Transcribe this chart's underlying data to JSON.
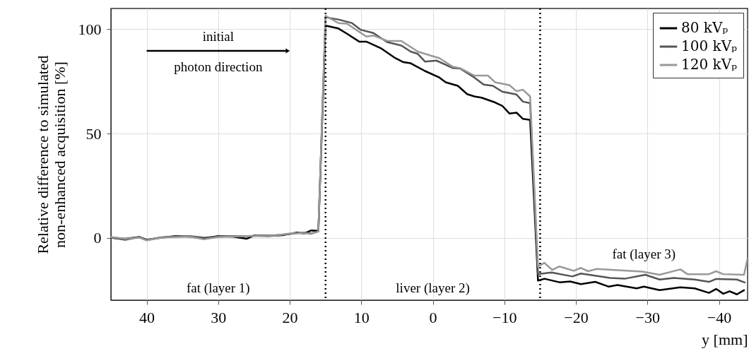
{
  "chart_data": {
    "type": "line",
    "xlabel": "y [mm]",
    "ylabel": "Relative difference to simulated non-enhanced acquisition [%]",
    "xlim": [
      45,
      -44
    ],
    "xticks": [
      40,
      30,
      20,
      10,
      0,
      -10,
      -20,
      -30,
      -40
    ],
    "ylim": [
      -30,
      110
    ],
    "yticks": [
      0,
      50,
      100
    ],
    "grid": true,
    "legend": "top right",
    "line_style": "solid",
    "series": [
      {
        "name": "80 kVₚ",
        "color": "#000000",
        "x": [
          45,
          43,
          41,
          40,
          38,
          36,
          34,
          32,
          30,
          28,
          26,
          25,
          23,
          21,
          19,
          18,
          17,
          16,
          15,
          13.2,
          12,
          10.3,
          9.3,
          7.3,
          5.4,
          4.1,
          3.1,
          1.1,
          -0.9,
          -1.8,
          -3.5,
          -4.8,
          -5.8,
          -6.8,
          -8.7,
          -9.7,
          -10.7,
          -11.7,
          -12.6,
          -13.6,
          -14.7,
          -15.6,
          -17.7,
          -19.2,
          -20.7,
          -22.7,
          -24.6,
          -25.8,
          -28.5,
          -29.5,
          -31.7,
          -34.6,
          -36.6,
          -38.6,
          -39.6,
          -40.6,
          -41.5,
          -42.5,
          -43.5
        ],
        "values": [
          0,
          -0.5,
          0.3,
          -1,
          0,
          0.8,
          0.5,
          -0.3,
          0.8,
          0.5,
          -0.5,
          1,
          0.8,
          1.2,
          2.5,
          2,
          3.5,
          3.3,
          101.8,
          100.4,
          97.9,
          94.1,
          94.1,
          91,
          86.5,
          84.2,
          83.7,
          80,
          76.9,
          74.6,
          72.9,
          68.9,
          67.8,
          67.2,
          64.9,
          63.3,
          59.6,
          60,
          57,
          56.5,
          -20.6,
          -19.7,
          -21.4,
          -21,
          -22.3,
          -21.2,
          -23.5,
          -22.7,
          -24.3,
          -23.5,
          -25.2,
          -23.8,
          -24.3,
          -26.5,
          -24.6,
          -26.9,
          -25.7,
          -27.2,
          -25.2
        ]
      },
      {
        "name": "100 kVₚ",
        "color": "#555555",
        "x": [
          45,
          43,
          41,
          40,
          38,
          36,
          34,
          32,
          30,
          28,
          26,
          24,
          22,
          20,
          18,
          17,
          16,
          15,
          13.2,
          11.3,
          10.1,
          8.3,
          6.4,
          4.4,
          3.1,
          2.1,
          1.1,
          -0.5,
          -2.8,
          -3.8,
          -5.8,
          -7.1,
          -8.4,
          -9.7,
          -11.7,
          -12.6,
          -13.6,
          -14.7,
          -16.6,
          -19.5,
          -20.7,
          -24.8,
          -26.8,
          -29.7,
          -31.7,
          -33.7,
          -36.6,
          -38.6,
          -39.6,
          -42.5,
          -43.6
        ],
        "values": [
          0,
          -1,
          0.3,
          -1.2,
          0.2,
          0.5,
          0.8,
          0,
          0.5,
          0.8,
          0.8,
          1,
          1.2,
          1.8,
          2.5,
          2,
          3,
          105.8,
          104.7,
          103,
          99.8,
          98.2,
          93.9,
          92.2,
          89.3,
          88.2,
          84.5,
          85,
          81.4,
          81.2,
          76.9,
          73.5,
          72.9,
          70.1,
          68.7,
          65.3,
          64.6,
          -17.5,
          -16.7,
          -18.6,
          -17.2,
          -19.3,
          -19.7,
          -17.8,
          -20.1,
          -19.3,
          -20.1,
          -21.2,
          -19.8,
          -20.1,
          -21.5
        ]
      },
      {
        "name": "120 kVₚ",
        "color": "#999999",
        "x": [
          45,
          43,
          41,
          40,
          38,
          36,
          34,
          32,
          30,
          28,
          26,
          24,
          22,
          20,
          18,
          17,
          16,
          15,
          13.2,
          12,
          9.3,
          8.3,
          6.4,
          4.4,
          2.1,
          0.2,
          -0.9,
          -2.8,
          -3.8,
          -5.8,
          -7.7,
          -8.7,
          -10.7,
          -11.7,
          -12.6,
          -13.6,
          -14.7,
          -15.6,
          -16.7,
          -17.7,
          -19.7,
          -20.7,
          -21.7,
          -22.9,
          -25.4,
          -29.3,
          -31.7,
          -34.6,
          -35.6,
          -38.6,
          -39.6,
          -40.6,
          -43.5,
          -44
        ],
        "values": [
          0.3,
          -0.5,
          0,
          -1.3,
          0,
          0.3,
          0.5,
          -0.8,
          0.3,
          0.5,
          0.8,
          0.8,
          1,
          2,
          2.2,
          1.8,
          3,
          106.5,
          103,
          102.7,
          96.5,
          97,
          94.5,
          94.4,
          89.3,
          87.3,
          86.2,
          82,
          81.4,
          77.8,
          77.8,
          74.6,
          73.2,
          70.3,
          71,
          67.8,
          -13.8,
          -12.1,
          -15.5,
          -13.8,
          -15.9,
          -14.5,
          -16.1,
          -15,
          -15.5,
          -16.3,
          -17.8,
          -15.2,
          -17.5,
          -17.5,
          -16.1,
          -17.5,
          -17.8,
          -10
        ]
      }
    ],
    "ref_lines": [
      {
        "axis": "x",
        "value": 15,
        "color": "#000000",
        "line_style": "dotted"
      },
      {
        "axis": "x",
        "value": -15,
        "color": "#000000",
        "line_style": "dotted"
      }
    ],
    "annotations": [
      "initial",
      "photon direction",
      "fat (layer 1)",
      "liver (layer 2)",
      "fat (layer 3)"
    ]
  }
}
